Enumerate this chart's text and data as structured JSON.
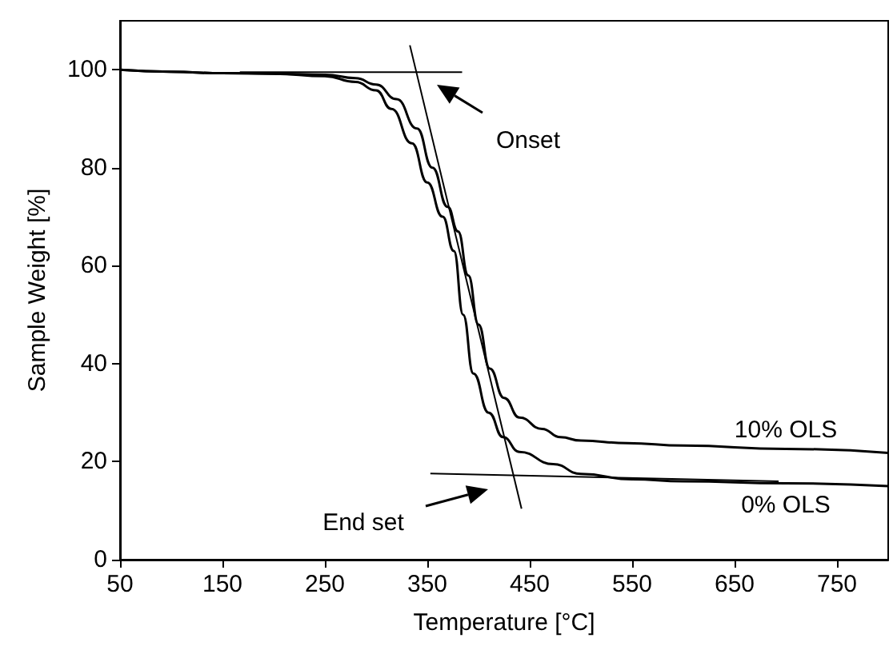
{
  "chart_data": {
    "type": "line",
    "xlabel": "Temperature [°C]",
    "ylabel": "Sample Weight [%]",
    "xlim": [
      50,
      800
    ],
    "xticks": [
      50,
      150,
      250,
      350,
      450,
      550,
      650,
      750
    ],
    "ylim": [
      0,
      110
    ],
    "yticks": [
      0,
      20,
      40,
      60,
      80,
      100
    ],
    "grid": false,
    "legend": false,
    "marker": "none",
    "line_style": "solid",
    "series": [
      {
        "name": "10% OLS",
        "color": "#000000",
        "x": [
          50,
          100,
          150,
          200,
          250,
          280,
          300,
          320,
          340,
          355,
          370,
          380,
          390,
          400,
          411,
          425,
          440,
          462,
          480,
          500,
          545,
          600,
          700,
          800
        ],
        "values": [
          100,
          99.6,
          99.3,
          99.2,
          99,
          98.3,
          97,
          94,
          88,
          80,
          72,
          67,
          58,
          48,
          39,
          33,
          29,
          26.7,
          25,
          24.3,
          23.8,
          23.3,
          22.6,
          21.8
        ]
      },
      {
        "name": "0% OLS",
        "color": "#000000",
        "x": [
          50,
          100,
          150,
          200,
          250,
          280,
          300,
          315,
          335,
          350,
          365,
          376,
          385,
          395,
          410,
          424,
          440,
          473,
          500,
          550,
          600,
          700,
          800
        ],
        "values": [
          100,
          99.6,
          99.3,
          99.2,
          98.7,
          97.5,
          95.8,
          92,
          85,
          77,
          70,
          63,
          50,
          38,
          30,
          25,
          22,
          19.5,
          17.5,
          16.4,
          16,
          15.6,
          15
        ]
      },
      {
        "type": "line",
        "color": "#000000",
        "x": [
          167,
          384
        ],
        "values": [
          99.5,
          99.5
        ]
      },
      {
        "type": "line",
        "color": "#000000",
        "x": [
          333,
          442
        ],
        "values": [
          105,
          10.4
        ]
      },
      {
        "type": "line",
        "color": "#000000",
        "x": [
          353,
          693
        ],
        "values": [
          17.6,
          16
        ]
      }
    ],
    "annotations": [
      "Onset",
      "End set"
    ]
  }
}
